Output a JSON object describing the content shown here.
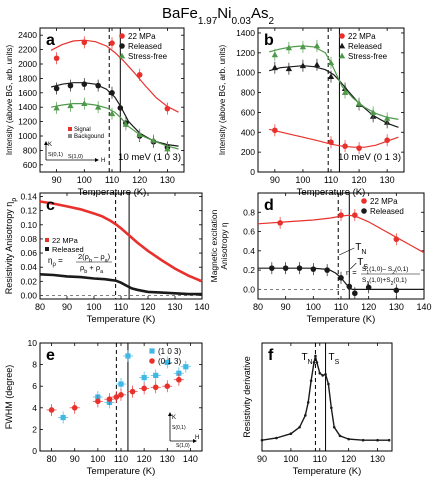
{
  "figure_title": "BaFe1.97Ni0.03As2",
  "figure_title_parts": {
    "pre": "BaFe",
    "sub1": "1.97",
    "mid": "Ni",
    "sub2": "0.03",
    "post": "As",
    "sub3": "2"
  },
  "colors": {
    "red": "#e8312c",
    "black": "#1a1a1a",
    "green": "#4f9a4a",
    "cyan": "#3fb8e6",
    "gray": "#888888"
  },
  "chart_data": [
    {
      "id": "a",
      "type": "scatter",
      "panel_label": "a",
      "xlabel": "Temperature (K)",
      "ylabel": "Intensity (above BG, arb. units)",
      "xlim": [
        84,
        136
      ],
      "ylim": [
        500,
        2500
      ],
      "xticks": [
        90,
        100,
        110,
        120,
        130
      ],
      "yticks": [
        600,
        800,
        1000,
        1200,
        1400,
        1600,
        1800,
        2000,
        2200,
        2400
      ],
      "vlines": [
        {
          "x": 109,
          "style": "dashed"
        },
        {
          "x": 113,
          "style": "solid"
        }
      ],
      "annotation": "10 meV (1 0 3)",
      "legend_position": "top-right",
      "series": [
        {
          "name": "22 MPa",
          "color": "#e8312c",
          "marker": "circle",
          "x": [
            90,
            100,
            110,
            120,
            130
          ],
          "y": [
            2080,
            2300,
            2290,
            1850,
            1380
          ],
          "fit": {
            "x": [
              88,
              92,
              96,
              100,
              104,
              108,
              111,
              114,
              118,
              122,
              126,
              130,
              134
            ],
            "y": [
              2190,
              2270,
              2320,
              2330,
              2310,
              2250,
              2160,
              2050,
              1880,
              1700,
              1530,
              1410,
              1330
            ]
          }
        },
        {
          "name": "Released",
          "color": "#1a1a1a",
          "marker": "circle",
          "x": [
            90,
            95,
            100,
            105,
            110,
            113,
            115,
            120,
            125,
            130
          ],
          "y": [
            1660,
            1700,
            1720,
            1700,
            1600,
            1390,
            1180,
            1000,
            920,
            840
          ],
          "fit": {
            "x": [
              88,
              92,
              96,
              100,
              104,
              108,
              111,
              113,
              116,
              120,
              125,
              130,
              134
            ],
            "y": [
              1680,
              1720,
              1740,
              1740,
              1720,
              1650,
              1540,
              1420,
              1200,
              1040,
              930,
              880,
              860
            ]
          }
        },
        {
          "name": "Stress-free",
          "color": "#4f9a4a",
          "marker": "triangle",
          "x": [
            90,
            95,
            100,
            105,
            110,
            115,
            120,
            125,
            130
          ],
          "y": [
            1390,
            1420,
            1450,
            1400,
            1310,
            1160,
            1020,
            940,
            820
          ],
          "fit": {
            "x": [
              88,
              92,
              96,
              100,
              104,
              108,
              111,
              113,
              116,
              120,
              125,
              130,
              134
            ],
            "y": [
              1400,
              1430,
              1450,
              1450,
              1430,
              1390,
              1330,
              1260,
              1130,
              1020,
              930,
              860,
              820
            ]
          }
        }
      ],
      "inset": {
        "signal_label": "Signal",
        "background_label": "Backgound",
        "k_label": "K",
        "h_label": "H",
        "s10_label": "S(1,0)",
        "s01_label": "S(0,1)"
      }
    },
    {
      "id": "b",
      "type": "scatter",
      "panel_label": "b",
      "xlabel": "Temperature (K)",
      "ylabel": "Intensity (above BG, arb. units)",
      "xlim": [
        84,
        136
      ],
      "ylim": [
        0,
        1450
      ],
      "xticks": [
        90,
        100,
        110,
        120,
        130
      ],
      "yticks": [
        0,
        200,
        400,
        600,
        800,
        1000,
        1200,
        1400
      ],
      "vlines": [
        {
          "x": 109,
          "style": "dashed"
        },
        {
          "x": 113,
          "style": "solid"
        }
      ],
      "annotation": "10 meV (0 1 3)",
      "legend_position": "top-right",
      "series": [
        {
          "name": "22 MPa",
          "color": "#e8312c",
          "marker": "circle",
          "x": [
            90,
            110,
            115,
            120,
            130
          ],
          "y": [
            420,
            300,
            260,
            240,
            320
          ],
          "fit": {
            "x": [
              88,
              94,
              100,
              106,
              110,
              114,
              118,
              122,
              126,
              130,
              134
            ],
            "y": [
              430,
              390,
              350,
              310,
              280,
              260,
              250,
              250,
              270,
              310,
              350
            ]
          }
        },
        {
          "name": "Released",
          "color": "#1a1a1a",
          "marker": "triangle",
          "x": [
            90,
            95,
            100,
            105,
            110,
            115,
            120,
            125,
            130
          ],
          "y": [
            1050,
            1040,
            1070,
            1080,
            960,
            840,
            680,
            560,
            500
          ],
          "fit": {
            "x": [
              88,
              92,
              96,
              100,
              104,
              108,
              111,
              113,
              116,
              120,
              125,
              130,
              134
            ],
            "y": [
              1020,
              1050,
              1060,
              1070,
              1060,
              1030,
              980,
              920,
              820,
              690,
              570,
              490,
              450
            ]
          }
        },
        {
          "name": "Stress-free",
          "color": "#4f9a4a",
          "marker": "triangle",
          "x": [
            90,
            95,
            100,
            105,
            110,
            115,
            120,
            125,
            130
          ],
          "y": [
            1180,
            1250,
            1260,
            1270,
            1100,
            800,
            690,
            600,
            540
          ],
          "fit": {
            "x": [
              88,
              92,
              96,
              100,
              104,
              108,
              110,
              112,
              114,
              118,
              122,
              126,
              130,
              134
            ],
            "y": [
              1210,
              1240,
              1260,
              1270,
              1260,
              1200,
              1100,
              980,
              860,
              740,
              650,
              590,
              550,
              530
            ]
          }
        }
      ]
    },
    {
      "id": "c",
      "type": "line",
      "panel_label": "c",
      "xlabel": "Temperature (K)",
      "ylabel": "Resistivity Anisotropy  η",
      "ylabel_sub": "ρ",
      "xlim": [
        80,
        140
      ],
      "ylim": [
        -0.005,
        0.145
      ],
      "xticks": [
        80,
        90,
        100,
        110,
        120,
        130,
        140
      ],
      "yticks": [
        0.0,
        0.02,
        0.04,
        0.06,
        0.08,
        0.1,
        0.12,
        0.14
      ],
      "vlines": [
        {
          "x": 108,
          "style": "dashed"
        },
        {
          "x": 113,
          "style": "solid"
        }
      ],
      "hline": {
        "y": 0.0,
        "style": "dashed"
      },
      "legend_position": "middle-left",
      "formula_lhs": "η",
      "formula_lhs_sub": "ρ",
      "formula_num": "2(ρ",
      "formula_num_sub1": "b",
      "formula_num_mid": " – ρ",
      "formula_num_sub2": "a",
      "formula_num_end": ")",
      "formula_den": "ρ",
      "formula_den_sub1": "b",
      "formula_den_mid": " + ρ",
      "formula_den_sub2": "a",
      "series": [
        {
          "name": "22 MPa",
          "color": "#e8312c",
          "x": [
            80,
            85,
            90,
            95,
            100,
            103,
            106,
            108,
            110,
            113,
            116,
            120,
            125,
            130,
            135,
            140
          ],
          "y": [
            0.133,
            0.13,
            0.126,
            0.122,
            0.116,
            0.112,
            0.106,
            0.101,
            0.095,
            0.085,
            0.075,
            0.063,
            0.05,
            0.038,
            0.028,
            0.02
          ]
        },
        {
          "name": "Released",
          "color": "#1a1a1a",
          "x": [
            80,
            85,
            90,
            95,
            100,
            104,
            106,
            108,
            110,
            112,
            114,
            116,
            120,
            125,
            130,
            135,
            140
          ],
          "y": [
            0.03,
            0.029,
            0.027,
            0.026,
            0.024,
            0.023,
            0.022,
            0.021,
            0.018,
            0.014,
            0.01,
            0.008,
            0.005,
            0.004,
            0.003,
            0.002,
            0.002
          ]
        }
      ]
    },
    {
      "id": "d",
      "type": "scatter",
      "panel_label": "d",
      "xlabel": "Temperature (K)",
      "ylabel": "Magnetic excitation Anisotropy  η",
      "xlim": [
        80,
        140
      ],
      "ylim": [
        -0.1,
        1.0
      ],
      "xticks": [
        80,
        90,
        100,
        110,
        120,
        130,
        140
      ],
      "yticks": [
        0.0,
        0.2,
        0.4,
        0.6,
        0.8
      ],
      "vlines": [
        {
          "x": 109,
          "style": "dashed"
        },
        {
          "x": 113,
          "style": "solid"
        }
      ],
      "hline": {
        "y": 0.0,
        "style": "dashed"
      },
      "legend_position": "top-right",
      "tn_label": "T",
      "tn_sub": "N",
      "ts_label": "T",
      "ts_sub": "S",
      "formula_lhs": "η = ",
      "formula_num": "S",
      "formula_num_sub1": "1",
      "formula_num_rest": "(1,0)– S",
      "formula_num_sub2": "2",
      "formula_num_end": "(0,1)",
      "formula_den": "S",
      "formula_den_sub1": "1",
      "formula_den_rest": "(1,0)+S",
      "formula_den_sub2": "2",
      "formula_den_end": "(0,1)",
      "series": [
        {
          "name": "22 MPa",
          "color": "#e8312c",
          "marker": "circle",
          "x": [
            88,
            110,
            115,
            130
          ],
          "y": [
            0.69,
            0.77,
            0.77,
            0.52
          ],
          "fit": {
            "x": [
              80,
              90,
              100,
              106,
              110,
              113,
              116,
              120,
              125,
              130,
              135,
              140
            ],
            "y": [
              0.68,
              0.7,
              0.72,
              0.74,
              0.76,
              0.77,
              0.75,
              0.7,
              0.62,
              0.54,
              0.46,
              0.38
            ]
          }
        },
        {
          "name": "Released",
          "color": "#1a1a1a",
          "marker": "circle",
          "x": [
            85,
            90,
            95,
            100,
            105,
            110,
            113,
            115,
            120,
            130
          ],
          "y": [
            0.22,
            0.22,
            0.22,
            0.21,
            0.2,
            0.12,
            0.03,
            -0.04,
            0.02,
            -0.01
          ],
          "fit": {
            "x": [
              80,
              90,
              100,
              104,
              106,
              108,
              110,
              112,
              114,
              116,
              120,
              130,
              140
            ],
            "y": [
              0.22,
              0.22,
              0.22,
              0.21,
              0.2,
              0.17,
              0.12,
              0.05,
              0.0,
              0.0,
              0.0,
              0.0,
              0.0
            ]
          }
        }
      ]
    },
    {
      "id": "e",
      "type": "scatter",
      "panel_label": "e",
      "xlabel": "Temperature (K)",
      "ylabel": "FWHM (degree)",
      "xlim": [
        75,
        145
      ],
      "ylim": [
        0,
        10
      ],
      "xticks": [
        80,
        90,
        100,
        110,
        120,
        130,
        140
      ],
      "yticks": [
        0,
        2,
        4,
        6,
        8,
        10
      ],
      "vlines": [
        {
          "x": 108,
          "style": "dashed"
        },
        {
          "x": 113,
          "style": "solid"
        }
      ],
      "legend_position": "top-right",
      "series": [
        {
          "name": "(1 0 3)",
          "color": "#3fb8e6",
          "marker": "square",
          "x": [
            85,
            100,
            105,
            110,
            113,
            120,
            125,
            130,
            135,
            138
          ],
          "y": [
            3.1,
            5.0,
            4.5,
            6.2,
            8.8,
            6.8,
            7.0,
            8.2,
            7.2,
            7.8
          ]
        },
        {
          "name": "(0 1 3)",
          "color": "#e8312c",
          "marker": "circle",
          "x": [
            80,
            90,
            100,
            105,
            108,
            110,
            115,
            120,
            125,
            130,
            135
          ],
          "y": [
            3.8,
            4.0,
            4.6,
            4.8,
            5.0,
            5.2,
            5.5,
            5.8,
            5.9,
            6.0,
            6.6
          ]
        }
      ],
      "inset": {
        "k_label": "K",
        "h_label": "H",
        "s10_label": "S(1,0)",
        "s01_label": "S(0,1)"
      }
    },
    {
      "id": "f",
      "type": "line",
      "panel_label": "f",
      "xlabel": "Temperature (K)",
      "ylabel": "Resistivity derivative",
      "xlim": [
        90,
        135
      ],
      "ylim": [
        0,
        1
      ],
      "xticks": [
        90,
        100,
        110,
        120,
        130
      ],
      "yticks": [],
      "vlines": [
        {
          "x": 108.5,
          "style": "dashed"
        },
        {
          "x": 112,
          "style": "solid"
        }
      ],
      "tn_label": "T",
      "tn_sub": "N",
      "ts_label": "T",
      "ts_sub": "S",
      "series": [
        {
          "name": "",
          "color": "#1a1a1a",
          "x": [
            90,
            95,
            100,
            103,
            105,
            106,
            107,
            108,
            108.5,
            109,
            110,
            111,
            112,
            113,
            114,
            115,
            117,
            120,
            125,
            130,
            134
          ],
          "y": [
            0.1,
            0.12,
            0.16,
            0.22,
            0.33,
            0.45,
            0.65,
            0.82,
            0.88,
            0.82,
            0.72,
            0.7,
            0.71,
            0.62,
            0.4,
            0.22,
            0.14,
            0.11,
            0.1,
            0.1,
            0.1
          ]
        }
      ]
    }
  ]
}
